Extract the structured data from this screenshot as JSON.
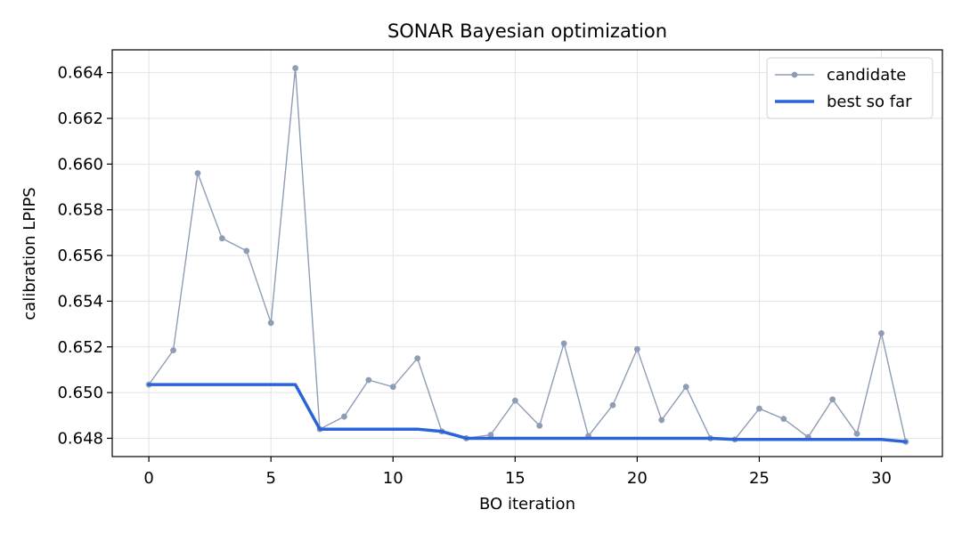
{
  "chart_data": {
    "type": "line",
    "title": "SONAR Bayesian optimization",
    "xlabel": "BO iteration",
    "ylabel": "calibration LPIPS",
    "xlim": [
      -1.5,
      32.5
    ],
    "ylim": [
      0.6472,
      0.665
    ],
    "xticks": [
      0,
      5,
      10,
      15,
      20,
      25,
      30
    ],
    "yticks": [
      0.648,
      0.65,
      0.652,
      0.654,
      0.656,
      0.658,
      0.66,
      0.662,
      0.664
    ],
    "ytick_labels": [
      "0.648",
      "0.650",
      "0.652",
      "0.654",
      "0.656",
      "0.658",
      "0.660",
      "0.662",
      "0.664"
    ],
    "grid": true,
    "legend_position": "top-right",
    "x": [
      0,
      1,
      2,
      3,
      4,
      5,
      6,
      7,
      8,
      9,
      10,
      11,
      12,
      13,
      14,
      15,
      16,
      17,
      18,
      19,
      20,
      21,
      22,
      23,
      24,
      25,
      26,
      27,
      28,
      29,
      30,
      31
    ],
    "series": [
      {
        "name": "candidate",
        "color": "#8e9db5",
        "marker": "circle",
        "values": [
          0.65035,
          0.65185,
          0.6596,
          0.65675,
          0.6562,
          0.65305,
          0.6642,
          0.6484,
          0.64895,
          0.65055,
          0.65025,
          0.6515,
          0.6483,
          0.648,
          0.64815,
          0.64965,
          0.64855,
          0.65215,
          0.6481,
          0.64945,
          0.6519,
          0.6488,
          0.65025,
          0.648,
          0.64795,
          0.6493,
          0.64885,
          0.64805,
          0.6497,
          0.6482,
          0.6526,
          0.64785
        ]
      },
      {
        "name": "best so far",
        "color": "#2b63d9",
        "marker": "none",
        "values": [
          0.65035,
          0.65035,
          0.65035,
          0.65035,
          0.65035,
          0.65035,
          0.65035,
          0.6484,
          0.6484,
          0.6484,
          0.6484,
          0.6484,
          0.6483,
          0.648,
          0.648,
          0.648,
          0.648,
          0.648,
          0.648,
          0.648,
          0.648,
          0.648,
          0.648,
          0.648,
          0.64795,
          0.64795,
          0.64795,
          0.64795,
          0.64795,
          0.64795,
          0.64795,
          0.64785
        ]
      }
    ]
  }
}
